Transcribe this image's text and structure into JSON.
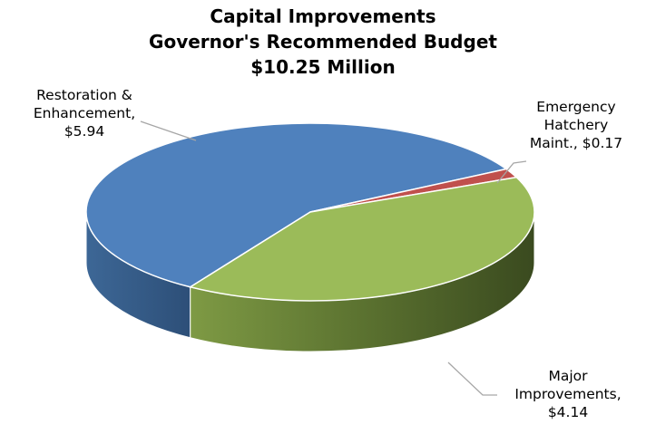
{
  "chart_data": {
    "type": "pie",
    "title_lines": [
      "Capital Improvements",
      "Governor's Recommended Budget",
      "$10.25 Million"
    ],
    "slices": [
      {
        "label_lines": [
          "Restoration &",
          "Enhancement,",
          "$5.94"
        ],
        "name": "Restoration & Enhancement",
        "value": 5.94,
        "color": "#4f81bd"
      },
      {
        "label_lines": [
          "Emergency",
          "Hatchery",
          "Maint., $0.17"
        ],
        "name": "Emergency Hatchery Maint.",
        "value": 0.17,
        "color": "#c0504d"
      },
      {
        "label_lines": [
          "Major",
          "Improvements,",
          "$4.14"
        ],
        "name": "Major Improvements",
        "value": 4.14,
        "color": "#9bbb59"
      }
    ],
    "three_d": true,
    "legend": "none"
  }
}
